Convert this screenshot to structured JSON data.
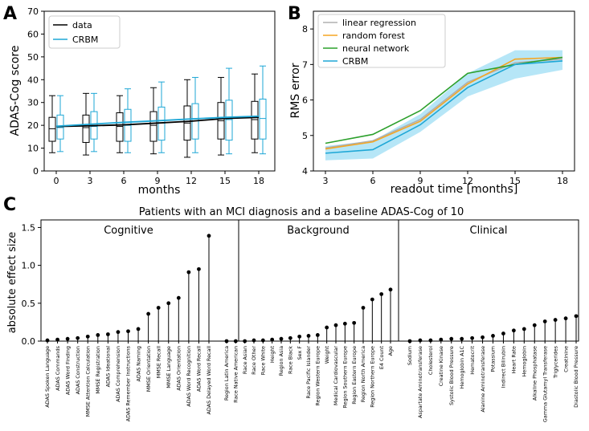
{
  "panels": [
    {
      "letter": "A"
    },
    {
      "letter": "B"
    },
    {
      "letter": "C"
    }
  ],
  "chart_data": [
    {
      "type": "box",
      "panel": "A",
      "xlabel": "months",
      "ylabel": "ADAS-Cog score",
      "xticks": [
        0,
        3,
        6,
        9,
        12,
        15,
        18
      ],
      "yticks": [
        0,
        10,
        20,
        30,
        40,
        50,
        60,
        70
      ],
      "ylim": [
        0,
        70
      ],
      "legend": {
        "position": "upper-left",
        "entries": [
          "data",
          "CRBM"
        ]
      },
      "colors": {
        "data": "#000000",
        "CRBM": "#1ea7d6"
      },
      "series": [
        {
          "name": "data",
          "x": [
            0,
            3,
            6,
            9,
            12,
            15,
            18
          ],
          "mean": [
            19.5,
            19.8,
            20.2,
            21.0,
            21.8,
            23.0,
            23.5
          ],
          "whisker_low": [
            8,
            7,
            8,
            7.5,
            6,
            7,
            8
          ],
          "q1": [
            13,
            12.5,
            13,
            13,
            13.5,
            14,
            14
          ],
          "median": [
            18.5,
            19,
            19.5,
            20,
            21,
            22,
            22.5
          ],
          "q3": [
            23.5,
            24.5,
            25.5,
            26,
            28.5,
            30,
            30.5
          ],
          "whisker_high": [
            33,
            34,
            33,
            36.5,
            40,
            41,
            42.5
          ]
        },
        {
          "name": "CRBM",
          "x": [
            0,
            3,
            6,
            9,
            12,
            15,
            18
          ],
          "mean": [
            19.6,
            20.5,
            21.3,
            22.0,
            22.8,
            23.5,
            24.0
          ],
          "whisker_low": [
            8.5,
            8.5,
            8,
            8,
            8,
            7.5,
            7.5
          ],
          "q1": [
            14,
            14,
            13,
            13.5,
            14,
            13.5,
            14
          ],
          "median": [
            19,
            19.5,
            20,
            21,
            22,
            22.5,
            23
          ],
          "q3": [
            24.5,
            26,
            27,
            28,
            29.5,
            31,
            31.5
          ],
          "whisker_high": [
            33,
            34,
            36,
            39,
            41,
            45,
            46
          ]
        }
      ]
    },
    {
      "type": "line",
      "panel": "B",
      "xlabel": "readout time [months]",
      "ylabel": "RMS error",
      "x": [
        3,
        6,
        9,
        12,
        15,
        18
      ],
      "xticks": [
        3,
        6,
        9,
        12,
        15,
        18
      ],
      "yticks": [
        4,
        5,
        6,
        7,
        8
      ],
      "ylim": [
        4,
        8.5
      ],
      "legend": {
        "position": "upper-left",
        "entries": [
          "linear regression",
          "random forest",
          "neural network",
          "CRBM"
        ]
      },
      "series": [
        {
          "name": "linear regression",
          "color": "#b0b0b0",
          "values": [
            4.65,
            4.85,
            5.45,
            6.5,
            7.05,
            7.15
          ]
        },
        {
          "name": "random forest",
          "color": "#f5a623",
          "values": [
            4.62,
            4.82,
            5.4,
            6.45,
            7.15,
            7.2
          ]
        },
        {
          "name": "neural network",
          "color": "#2ca02c",
          "values": [
            4.78,
            5.03,
            5.7,
            6.75,
            7.0,
            7.2
          ]
        },
        {
          "name": "CRBM",
          "color": "#1ea7d6",
          "values": [
            4.5,
            4.6,
            5.3,
            6.35,
            7.0,
            7.1
          ],
          "band_low": [
            4.3,
            4.35,
            5.1,
            6.1,
            6.6,
            6.85
          ],
          "band_high": [
            4.7,
            4.85,
            5.6,
            6.75,
            7.4,
            7.4
          ]
        }
      ]
    },
    {
      "type": "stem",
      "panel": "C",
      "title": "Patients with an MCI diagnosis and a baseline ADAS-Cog of 10",
      "ylabel": "absolute effect size",
      "ylim": [
        0,
        1.6
      ],
      "yticks": [
        "0.0",
        "0.5",
        "1.0",
        "1.5"
      ],
      "groups": [
        {
          "name": "Cognitive",
          "categories": [
            "ADAS Spoken Language",
            "ADAS Commands",
            "ADAS Word Finding",
            "ADAS Construction",
            "MMSE Attention Calculation",
            "MMSE Registration",
            "ADAS Ideational",
            "ADAS Comprehension",
            "ADAS Remember Instructions",
            "ADAS Naming",
            "MMSE Orientation",
            "MMSE Recall",
            "MMSE Language",
            "ADAS Orientation",
            "ADAS Word Recognition",
            "ADAS Word Recall",
            "ADAS Delayed Word Recall"
          ],
          "values": [
            0.01,
            0.02,
            0.03,
            0.04,
            0.06,
            0.08,
            0.09,
            0.12,
            0.13,
            0.16,
            0.36,
            0.44,
            0.5,
            0.57,
            0.91,
            0.95,
            1.39
          ]
        },
        {
          "name": "Background",
          "categories": [
            "Region Latin America",
            "Race Native American",
            "Race Asian",
            "Race Other",
            "Race White",
            "Height",
            "Region Asia",
            "Race Black",
            "Sex F",
            "Race Pacific Islander",
            "Region Western Europe",
            "Weight",
            "Medical Cardiovascular",
            "Region Southern Europe",
            "Region Eastern Europe",
            "Region North America",
            "Region Northern Europe",
            "E4 Count",
            "Age"
          ],
          "values": [
            0.0,
            0.0,
            0.0,
            0.01,
            0.01,
            0.02,
            0.03,
            0.04,
            0.06,
            0.07,
            0.08,
            0.18,
            0.21,
            0.23,
            0.24,
            0.44,
            0.55,
            0.62,
            0.68
          ]
        },
        {
          "name": "Clinical",
          "categories": [
            "Sodium",
            "Aspartate Aminotransferase",
            "Cholesterol",
            "Creatine Kinase",
            "Systolic Blood Pressure",
            "Hemoglobin A1C",
            "Hematocrit",
            "Alanine Aminotransferase",
            "Potassium",
            "Indirect Bilirubin",
            "Heart Rate",
            "Hemoglobin",
            "Alkaline Phosphatase",
            "Gamma Glutamyl Transferase",
            "Triglycerides",
            "Creatinine",
            "Diastolic Blood Pressure"
          ],
          "values": [
            0.0,
            0.01,
            0.01,
            0.02,
            0.03,
            0.03,
            0.04,
            0.05,
            0.07,
            0.1,
            0.14,
            0.16,
            0.21,
            0.26,
            0.28,
            0.3,
            0.33
          ]
        }
      ]
    }
  ]
}
